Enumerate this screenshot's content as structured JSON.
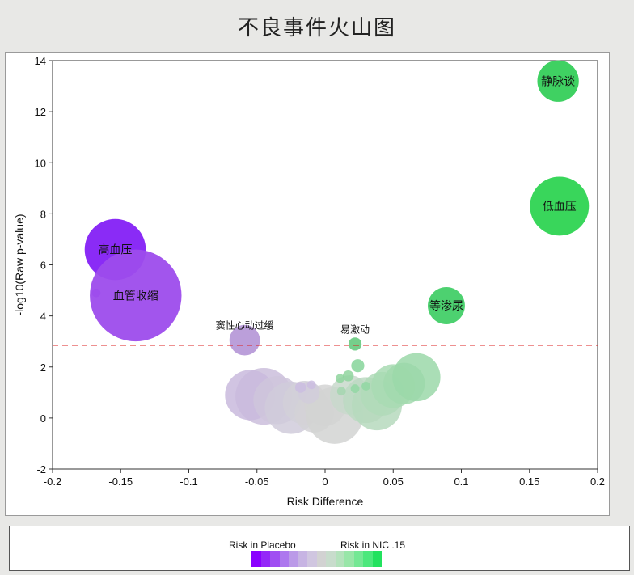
{
  "title": "不良事件火山图",
  "legend": {
    "left_label": "Risk in Placebo",
    "right_label": "Risk in NIC .15",
    "gradient": [
      "#8a00ff",
      "#9428f8",
      "#a04ef2",
      "#ad78ee",
      "#bb9ae8",
      "#c7b4e3",
      "#d0c6e0",
      "#d2d2d2",
      "#c8dccc",
      "#b4e2bc",
      "#98e6a8",
      "#74e894",
      "#4ce87c",
      "#22e25e"
    ]
  },
  "chart_data": {
    "type": "scatter",
    "title": "",
    "xlabel": "Risk Difference",
    "ylabel": "-log10(Raw p-value)",
    "xlim": [
      -0.2,
      0.2
    ],
    "ylim": [
      -2,
      14
    ],
    "x_ticks": [
      "-0.2",
      "-0.15",
      "-0.1",
      "-0.05",
      "0",
      "0.05",
      "0.1",
      "0.15",
      "0.2"
    ],
    "y_ticks": [
      "-2",
      "0",
      "2",
      "4",
      "6",
      "8",
      "10",
      "12",
      "14"
    ],
    "threshold": 2.85,
    "labeled_points": [
      {
        "label": "静脉谈",
        "x": 0.171,
        "y": 13.2,
        "size": 0.95,
        "color": "#35cf5a"
      },
      {
        "label": "低血压",
        "x": 0.172,
        "y": 8.3,
        "size": 1.35,
        "color": "#2ed452"
      },
      {
        "label": "等渗尿",
        "x": 0.089,
        "y": 4.4,
        "size": 0.85,
        "color": "#43cf68"
      },
      {
        "label": "易激动",
        "x": 0.022,
        "y": 2.9,
        "size": 0.3,
        "color": "#6fcc85"
      },
      {
        "label": "窦性心动过缓",
        "x": -0.059,
        "y": 3.05,
        "size": 0.7,
        "color": "#b79ad8"
      },
      {
        "label": "高血压",
        "x": -0.154,
        "y": 6.6,
        "size": 1.4,
        "color": "#8420f5"
      },
      {
        "label": "血管收缩",
        "x": -0.139,
        "y": 4.8,
        "size": 2.1,
        "color": "#9d4cec"
      }
    ],
    "other_points": [
      {
        "x": -0.168,
        "y": 4.9,
        "size": 0.2,
        "color": "#9d4cec"
      },
      {
        "x": -0.045,
        "y": 0.85,
        "size": 1.3,
        "color": "#cbbedc"
      },
      {
        "x": -0.055,
        "y": 0.9,
        "size": 1.15,
        "color": "#c9badd"
      },
      {
        "x": -0.035,
        "y": 0.7,
        "size": 1.1,
        "color": "#cfc6dc"
      },
      {
        "x": -0.025,
        "y": 0.4,
        "size": 1.2,
        "color": "#d0cbdb"
      },
      {
        "x": -0.015,
        "y": 0.6,
        "size": 1.0,
        "color": "#d2d0d8"
      },
      {
        "x": -0.008,
        "y": 0.2,
        "size": 0.9,
        "color": "#d4d2d6"
      },
      {
        "x": 0.0,
        "y": 0.5,
        "size": 0.95,
        "color": "#d4d4d4"
      },
      {
        "x": 0.007,
        "y": 0.1,
        "size": 1.3,
        "color": "#d2d4d2"
      },
      {
        "x": -0.012,
        "y": 1.0,
        "size": 0.5,
        "color": "#d1cddb"
      },
      {
        "x": -0.018,
        "y": 1.2,
        "size": 0.25,
        "color": "#cbbde0"
      },
      {
        "x": -0.01,
        "y": 1.3,
        "size": 0.2,
        "color": "#cbbde0"
      },
      {
        "x": 0.018,
        "y": 0.9,
        "size": 0.9,
        "color": "#c8d8cb"
      },
      {
        "x": 0.03,
        "y": 0.7,
        "size": 1.05,
        "color": "#bcd9c2"
      },
      {
        "x": 0.038,
        "y": 0.5,
        "size": 1.15,
        "color": "#b6d9bd"
      },
      {
        "x": 0.042,
        "y": 0.95,
        "size": 1.0,
        "color": "#b0dab9"
      },
      {
        "x": 0.05,
        "y": 1.25,
        "size": 1.0,
        "color": "#a8dbb3"
      },
      {
        "x": 0.058,
        "y": 1.35,
        "size": 0.95,
        "color": "#a2d9ae"
      },
      {
        "x": 0.067,
        "y": 1.6,
        "size": 1.1,
        "color": "#9bd8a9"
      },
      {
        "x": 0.024,
        "y": 2.05,
        "size": 0.3,
        "color": "#86d59a"
      },
      {
        "x": 0.017,
        "y": 1.65,
        "size": 0.25,
        "color": "#8fd59e"
      },
      {
        "x": 0.011,
        "y": 1.55,
        "size": 0.2,
        "color": "#8fd59e"
      },
      {
        "x": 0.03,
        "y": 1.25,
        "size": 0.2,
        "color": "#92d7a3"
      },
      {
        "x": 0.022,
        "y": 1.15,
        "size": 0.2,
        "color": "#92d7a3"
      },
      {
        "x": 0.012,
        "y": 1.05,
        "size": 0.2,
        "color": "#a5d6af"
      }
    ]
  }
}
